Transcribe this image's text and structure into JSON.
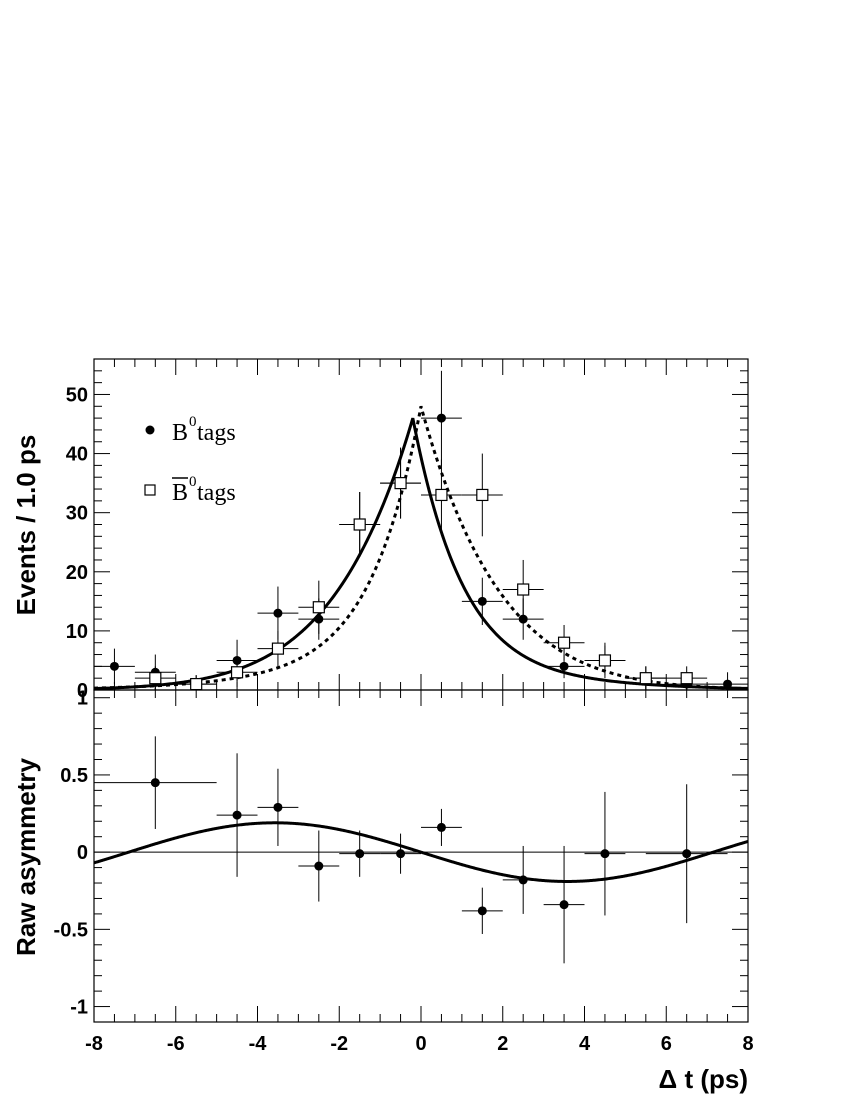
{
  "chart_data": [
    {
      "type": "scatter",
      "panel": "top",
      "ylabel": "Events / 1.0 ps",
      "xlim": [
        -8,
        8
      ],
      "ylim": [
        0,
        56
      ],
      "yticks": [
        "0",
        "10",
        "20",
        "30",
        "40",
        "50"
      ],
      "legend": [
        {
          "main": "B",
          "sup": "0",
          "text": " tags",
          "marker": "filled-circle"
        },
        {
          "main": "B",
          "sup": "0",
          "text": " tags",
          "marker": "open-square",
          "overline": true
        }
      ],
      "series": [
        {
          "marker": "filled-circle",
          "x": [
            -7.5,
            -6.5,
            -5.5,
            -4.5,
            -3.5,
            -2.5,
            -1.5,
            -0.5,
            0.5,
            1.5,
            2.5,
            3.5,
            4.5,
            5.5,
            6.5,
            7.5
          ],
          "y": [
            4,
            3,
            1,
            5,
            13,
            12,
            28,
            35,
            46,
            15,
            12,
            4,
            5,
            2,
            1,
            1
          ],
          "yerr": [
            3,
            3,
            1.5,
            3.5,
            4.5,
            3.5,
            5.5,
            6,
            8,
            4,
            3.5,
            2,
            3,
            2,
            1.5,
            2
          ]
        },
        {
          "marker": "open-square",
          "x": [
            -6.5,
            -5.5,
            -4.5,
            -3.5,
            -2.5,
            -1.5,
            -0.5,
            0.5,
            1.5,
            2.5,
            3.5,
            4.5,
            5.5,
            6.5
          ],
          "y": [
            2,
            1,
            3,
            7,
            14,
            28,
            35,
            33,
            33,
            17,
            8,
            5,
            2,
            2
          ],
          "yerr": [
            2,
            1.5,
            2.5,
            3,
            4.5,
            5.5,
            6,
            6,
            7,
            5,
            3,
            2.5,
            2,
            2
          ]
        }
      ],
      "curves": [
        {
          "style": "solid",
          "peak_x": -0.2,
          "peak_y": 46
        },
        {
          "style": "dotted",
          "peak_x": 0,
          "peak_y": 48
        }
      ]
    },
    {
      "type": "scatter",
      "panel": "bottom",
      "xlabel": "Δ t (ps)",
      "ylabel": "Raw asymmetry",
      "xlim": [
        -8,
        8
      ],
      "ylim": [
        -1.1,
        1.05
      ],
      "xticks": [
        "-8",
        "-6",
        "-4",
        "-2",
        "0",
        "2",
        "4",
        "6",
        "8"
      ],
      "yticks": [
        "-1",
        "-0.5",
        "0",
        "0.5",
        "1"
      ],
      "series": [
        {
          "marker": "filled-circle",
          "x": [
            -6.5,
            -4.5,
            -3.5,
            -2.5,
            -1.5,
            -0.5,
            0.5,
            1.5,
            2.5,
            3.5,
            4.5,
            6.5
          ],
          "xerr": [
            1.5,
            0.5,
            0.5,
            0.5,
            0.5,
            0.5,
            0.5,
            0.5,
            0.5,
            0.5,
            0.5,
            1.0
          ],
          "y": [
            0.45,
            0.24,
            0.29,
            -0.09,
            -0.01,
            -0.01,
            0.16,
            -0.38,
            -0.18,
            -0.34,
            -0.01,
            -0.01
          ],
          "yerr": [
            0.3,
            0.4,
            0.25,
            0.23,
            0.15,
            0.13,
            0.12,
            0.15,
            0.22,
            0.38,
            0.4,
            0.45
          ]
        }
      ],
      "curve": {
        "style": "solid",
        "amplitude": 0.19,
        "period": 14.3
      }
    }
  ]
}
